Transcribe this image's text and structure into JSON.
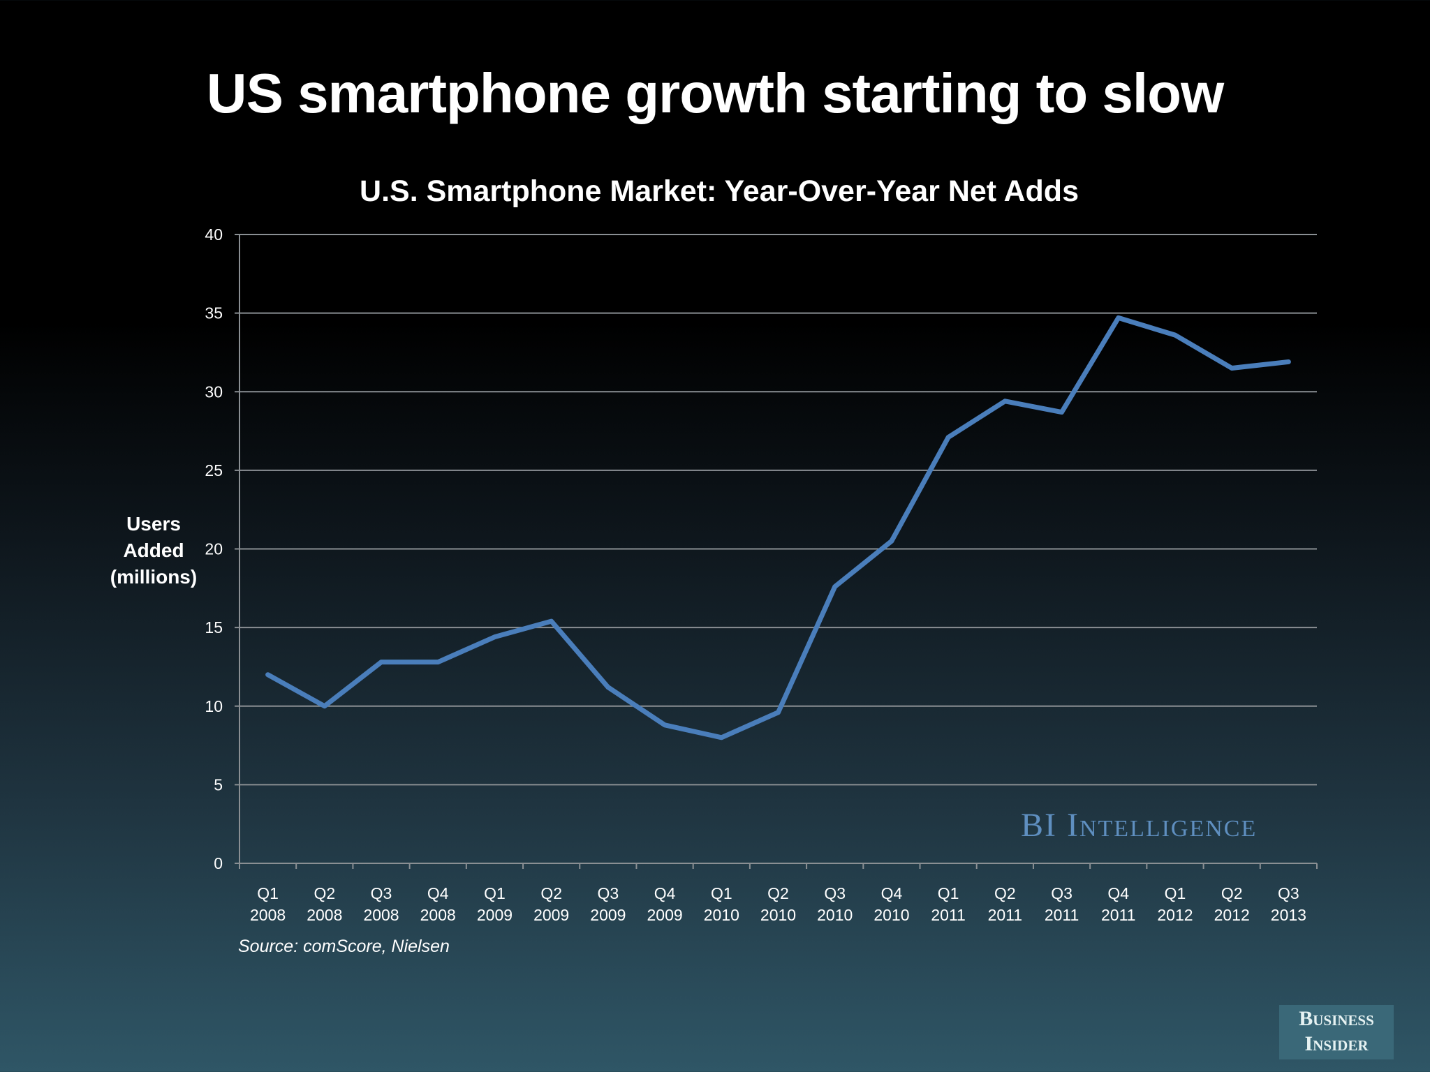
{
  "page_title": "US smartphone growth starting to slow",
  "source": "Source: comScore, Nielsen",
  "watermark": "BI Intelligence",
  "logo": {
    "line1": "Business",
    "line2": "Insider"
  },
  "chart_data": {
    "type": "line",
    "title": "U.S. Smartphone Market: Year-Over-Year Net Adds",
    "ylabel_lines": [
      "Users",
      "Added",
      "(millions)"
    ],
    "xlabel": "",
    "ylim": [
      0,
      40
    ],
    "yticks": [
      0,
      5,
      10,
      15,
      20,
      25,
      30,
      35,
      40
    ],
    "grid": true,
    "legend": "none",
    "line_color": "#4a7ebb",
    "categories": [
      [
        "Q1",
        "2008"
      ],
      [
        "Q2",
        "2008"
      ],
      [
        "Q3",
        "2008"
      ],
      [
        "Q4",
        "2008"
      ],
      [
        "Q1",
        "2009"
      ],
      [
        "Q2",
        "2009"
      ],
      [
        "Q3",
        "2009"
      ],
      [
        "Q4",
        "2009"
      ],
      [
        "Q1",
        "2010"
      ],
      [
        "Q2",
        "2010"
      ],
      [
        "Q3",
        "2010"
      ],
      [
        "Q4",
        "2010"
      ],
      [
        "Q1",
        "2011"
      ],
      [
        "Q2",
        "2011"
      ],
      [
        "Q3",
        "2011"
      ],
      [
        "Q4",
        "2011"
      ],
      [
        "Q1",
        "2012"
      ],
      [
        "Q2",
        "2012"
      ],
      [
        "Q3",
        "2013"
      ]
    ],
    "values": [
      12.0,
      10.0,
      12.8,
      12.8,
      14.4,
      15.4,
      11.2,
      8.8,
      8.0,
      9.6,
      17.6,
      20.5,
      27.1,
      29.4,
      28.7,
      34.7,
      33.6,
      31.5,
      31.9
    ]
  }
}
